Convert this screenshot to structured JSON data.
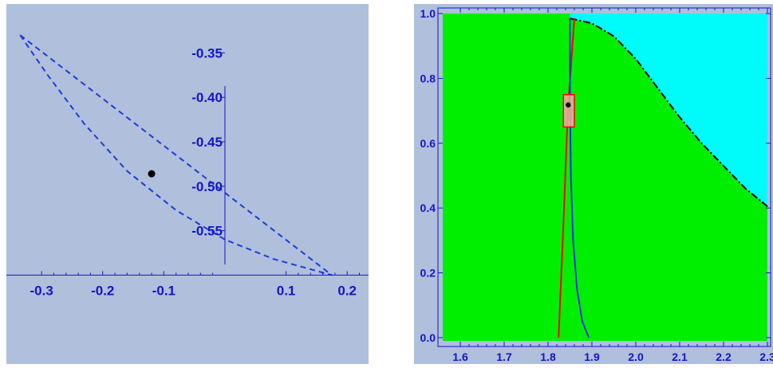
{
  "chart_data": [
    {
      "type": "line",
      "title": "",
      "xlabel": "",
      "ylabel": "",
      "xlim": [
        -0.355,
        0.235
      ],
      "ylim": [
        -0.7,
        -0.295
      ],
      "x_ticks": [
        "-0.3",
        "-0.2",
        "-0.1",
        "0.1",
        "0.2"
      ],
      "y_ticks": [
        "-0.35",
        "-0.40",
        "-0.45",
        "-0.50",
        "-0.55"
      ],
      "grid": false,
      "background": "#b0bfdc",
      "axis_color": "#1515c8",
      "series": [
        {
          "style": "dashed",
          "color": "#1a3fd6",
          "points": [
            [
              -0.335,
              -0.33
            ],
            [
              0.175,
              -0.6
            ]
          ]
        },
        {
          "style": "dashed",
          "color": "#1a3fd6",
          "points": [
            [
              -0.335,
              -0.33
            ],
            [
              -0.29,
              -0.375
            ],
            [
              -0.23,
              -0.43
            ],
            [
              -0.16,
              -0.483
            ],
            [
              -0.08,
              -0.527
            ],
            [
              0.0,
              -0.56
            ],
            [
              0.08,
              -0.582
            ],
            [
              0.175,
              -0.6
            ]
          ]
        }
      ],
      "marker": {
        "x": -0.12,
        "y": -0.486,
        "color": "#000000"
      }
    },
    {
      "type": "area",
      "title": "",
      "xlabel": "",
      "ylabel": "",
      "xlim": [
        1.56,
        2.3
      ],
      "ylim": [
        -0.01,
        1.0
      ],
      "x_ticks": [
        "1.6",
        "1.7",
        "1.8",
        "1.9",
        "2.0",
        "2.1",
        "2.2",
        "2.3"
      ],
      "y_ticks": [
        "0.0",
        "0.2",
        "0.4",
        "0.6",
        "0.8",
        "1.0"
      ],
      "grid": false,
      "background": "#b0bfdc",
      "axis_color": "#1515c8",
      "regions": [
        {
          "name": "",
          "color": "#00ef00"
        },
        {
          "name": "",
          "color": "#00fbfb"
        }
      ],
      "series": [
        {
          "style": "dash-dot",
          "color": "#000000",
          "points": [
            [
              1.85,
              0.985
            ],
            [
              1.9,
              0.97
            ],
            [
              1.95,
              0.93
            ],
            [
              2.0,
              0.86
            ],
            [
              2.05,
              0.77
            ],
            [
              2.1,
              0.68
            ],
            [
              2.15,
              0.6
            ],
            [
              2.2,
              0.53
            ],
            [
              2.25,
              0.46
            ],
            [
              2.3,
              0.405
            ]
          ]
        },
        {
          "style": "solid",
          "color": "#ff0000",
          "points": [
            [
              1.824,
              0.0
            ],
            [
              1.835,
              0.35
            ],
            [
              1.845,
              0.7
            ],
            [
              1.86,
              0.985
            ]
          ]
        },
        {
          "style": "solid",
          "color": "#1a2ee0",
          "points": [
            [
              1.85,
              0.985
            ],
            [
              1.85,
              0.75
            ],
            [
              1.852,
              0.5
            ],
            [
              1.857,
              0.3
            ],
            [
              1.866,
              0.15
            ],
            [
              1.878,
              0.05
            ],
            [
              1.893,
              0.0
            ]
          ]
        }
      ],
      "box": {
        "x0": 1.835,
        "x1": 1.86,
        "y0": 0.65,
        "y1": 0.75,
        "fill": "#f4a8a0",
        "stroke": "#ff0000"
      },
      "marker": {
        "x": 1.846,
        "y": 0.718,
        "color": "#000000"
      }
    }
  ]
}
